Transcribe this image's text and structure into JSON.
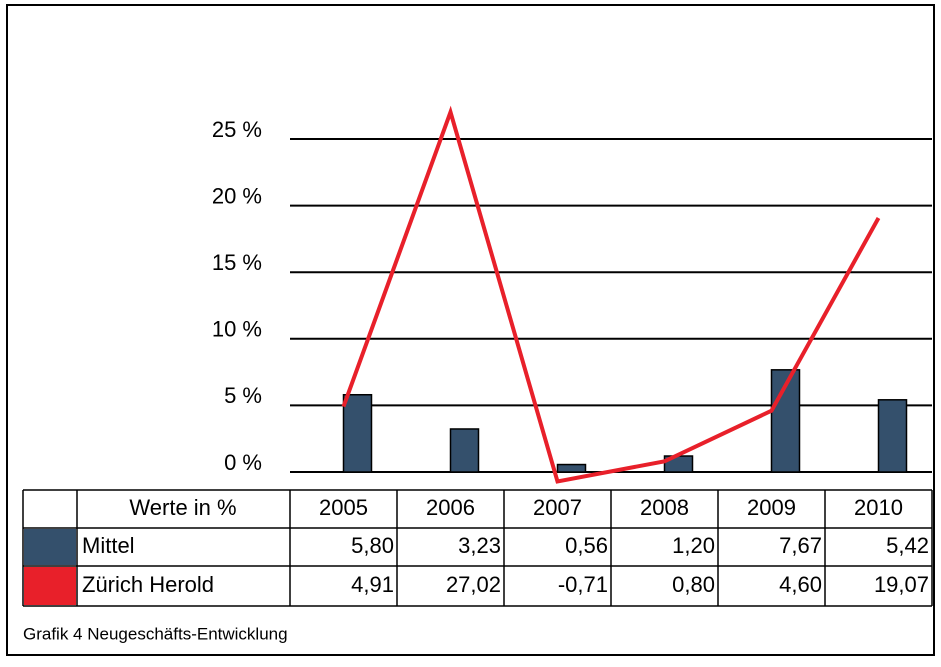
{
  "chart_data": {
    "type": "bar-line-table",
    "title": "Grafik 4 Neugeschäfts-Entwicklung",
    "table_header": "Werte in %",
    "categories": [
      "2005",
      "2006",
      "2007",
      "2008",
      "2009",
      "2010"
    ],
    "series": [
      {
        "name": "Mittel",
        "type": "bar",
        "color": "#34506c",
        "values": [
          5.8,
          3.23,
          0.56,
          1.2,
          7.67,
          5.42
        ],
        "value_labels": [
          "5,80",
          "3,23",
          "0,56",
          "1,20",
          "7,67",
          "5,42"
        ]
      },
      {
        "name": "Zürich Herold",
        "type": "line",
        "color": "#e8202a",
        "values": [
          4.91,
          27.02,
          -0.71,
          0.8,
          4.6,
          19.07
        ],
        "value_labels": [
          "4,91",
          "27,02",
          "-0,71",
          "0,80",
          "4,60",
          "19,07"
        ]
      }
    ],
    "ylim": [
      0,
      25
    ],
    "yticks": [
      {
        "value": 0,
        "label": "0 %"
      },
      {
        "value": 5,
        "label": "5 %"
      },
      {
        "value": 10,
        "label": "10 %"
      },
      {
        "value": 15,
        "label": "15 %"
      },
      {
        "value": 20,
        "label": "20 %"
      },
      {
        "value": 25,
        "label": "25 %"
      }
    ],
    "grid": true
  }
}
